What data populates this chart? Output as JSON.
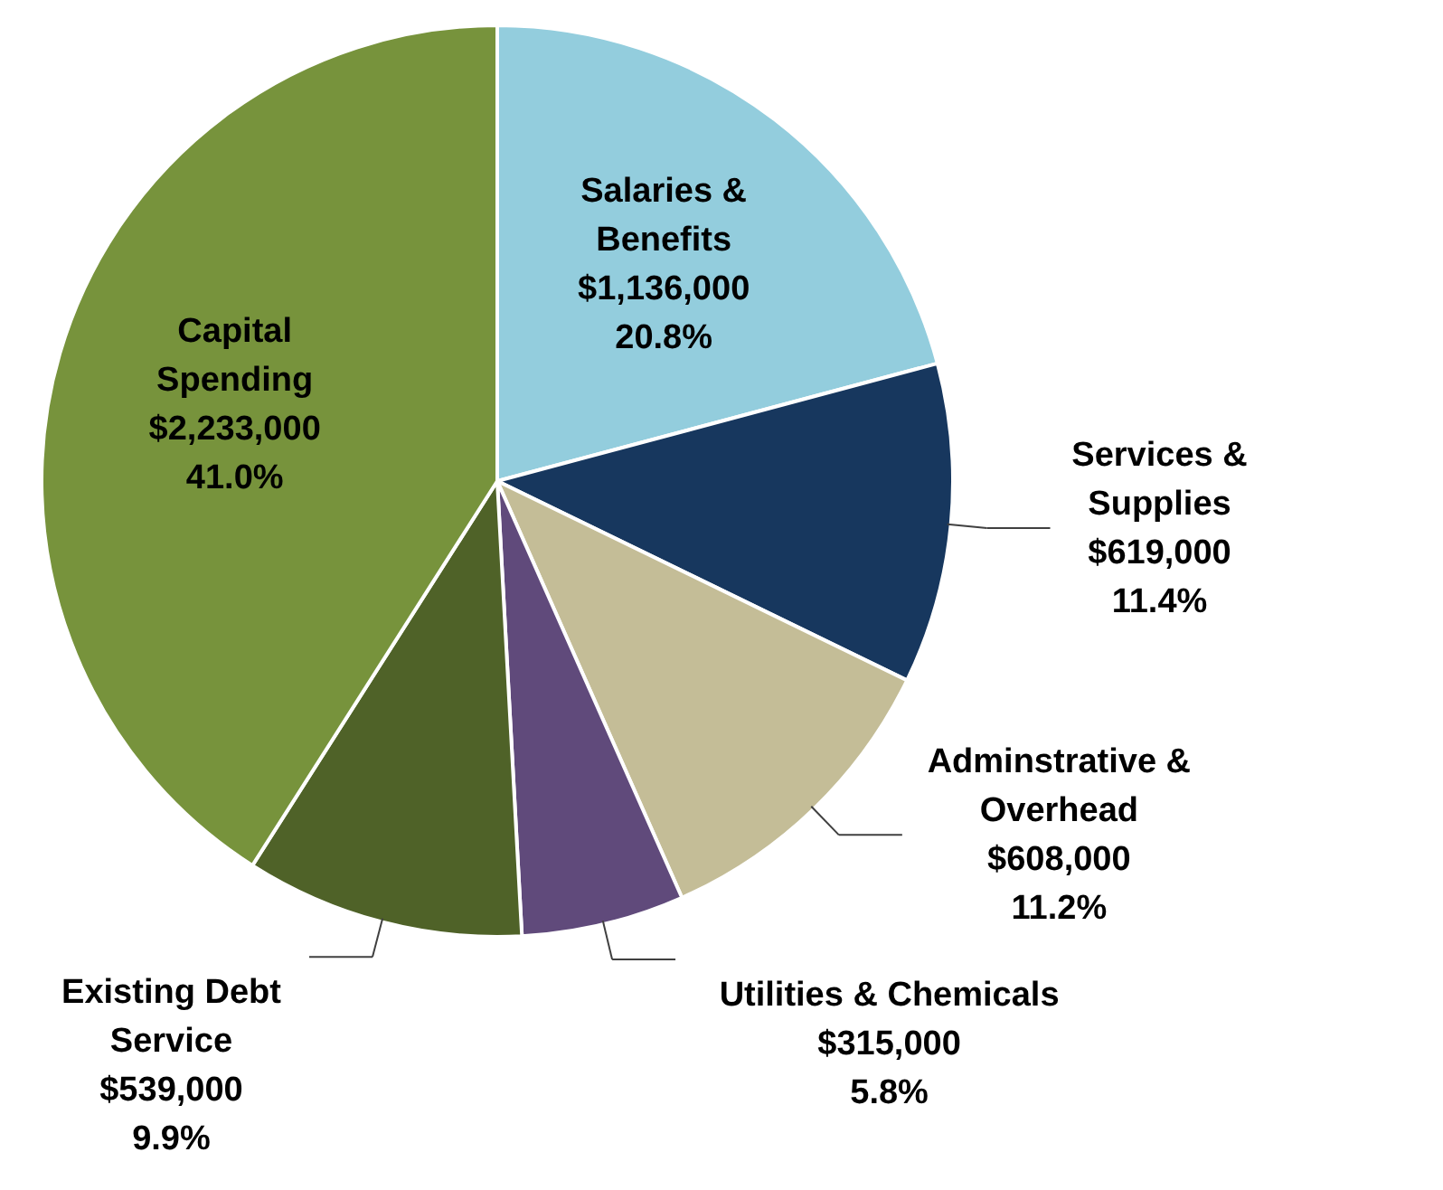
{
  "chart_data": {
    "type": "pie",
    "categories": [
      "Salaries &\nBenefits",
      "Services &\nSupplies",
      "Adminstrative &\nOverhead",
      "Utilities & Chemicals",
      "Existing Debt\nService",
      "Capital\nSpending"
    ],
    "values": [
      1136000,
      619000,
      608000,
      315000,
      539000,
      2233000
    ],
    "value_labels": [
      "$1,136,000\n20.8%",
      "$619,000\n11.4%",
      "$608,000\n11.2%",
      "$315,000\n5.8%",
      "$539,000\n9.9%",
      "$2,233,000\n41.0%"
    ],
    "colors": [
      "#93cddd",
      "#17375e",
      "#c4bd97",
      "#604a7b",
      "#4f6228",
      "#77933c"
    ],
    "legend": false
  }
}
